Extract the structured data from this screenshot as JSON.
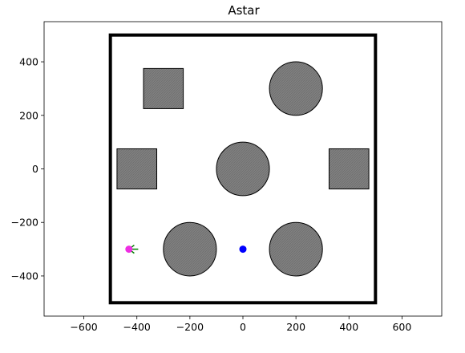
{
  "chart_data": {
    "type": "scatter",
    "title": "Astar",
    "xlabel": "",
    "ylabel": "",
    "xlim": [
      -750,
      750
    ],
    "ylim": [
      -550,
      550
    ],
    "xticks": [
      -600,
      -400,
      -200,
      0,
      200,
      400,
      600
    ],
    "yticks": [
      -400,
      -200,
      0,
      200,
      400
    ],
    "grid": false,
    "boundary": {
      "x0": -500,
      "y0": -500,
      "x1": 500,
      "y1": 500,
      "color": "#000000"
    },
    "obstacles": {
      "fill": "#808080",
      "edge": "#000000",
      "circles": [
        {
          "cx": 200,
          "cy": 300,
          "r": 100
        },
        {
          "cx": 0,
          "cy": 0,
          "r": 100
        },
        {
          "cx": -200,
          "cy": -300,
          "r": 100
        },
        {
          "cx": 200,
          "cy": -300,
          "r": 100
        }
      ],
      "squares": [
        {
          "x0": -375,
          "y0": 225,
          "x1": -225,
          "y1": 375
        },
        {
          "x0": -475,
          "y0": -75,
          "x1": -325,
          "y1": 75
        },
        {
          "x0": 325,
          "y0": -75,
          "x1": 475,
          "y1": 75
        }
      ]
    },
    "start_point": {
      "x": -430,
      "y": -300,
      "color": "#ee2ee2"
    },
    "goal_point": {
      "x": 0,
      "y": -300,
      "color": "#0000ff"
    },
    "explored": {
      "color": "#008000",
      "origin": {
        "x": -430,
        "y": -300
      },
      "segments": [
        {
          "x": -395,
          "y": -300
        },
        {
          "x": -410,
          "y": -285
        },
        {
          "x": -410,
          "y": -315
        }
      ]
    }
  }
}
